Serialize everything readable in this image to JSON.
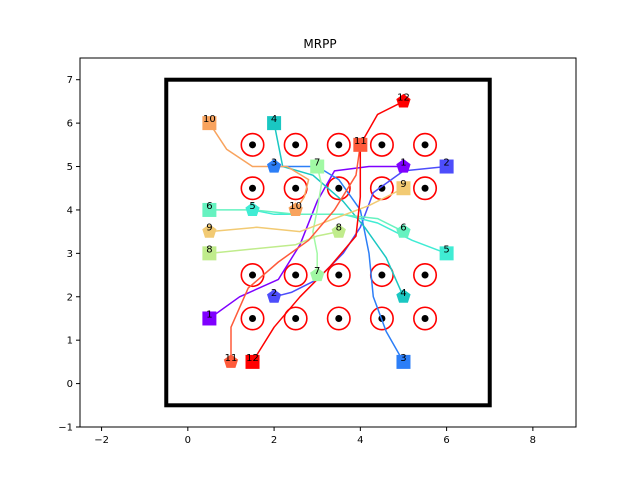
{
  "chart_data": {
    "type": "scatter",
    "title": "MRPP",
    "xlabel": "",
    "ylabel": "",
    "xlim": [
      -2.5,
      9.0
    ],
    "ylim": [
      -1.0,
      7.5
    ],
    "x_ticks": [
      -2,
      0,
      2,
      4,
      6,
      8
    ],
    "y_ticks": [
      -1,
      0,
      1,
      2,
      3,
      4,
      5,
      6,
      7
    ],
    "grid": false,
    "boundary": {
      "x": [
        -0.5,
        7.0
      ],
      "y": [
        -0.5,
        7.0
      ]
    },
    "obstacles": [
      [
        1.5,
        5.5
      ],
      [
        2.5,
        5.5
      ],
      [
        3.5,
        5.5
      ],
      [
        4.5,
        5.5
      ],
      [
        5.5,
        5.5
      ],
      [
        1.5,
        4.5
      ],
      [
        2.5,
        4.5
      ],
      [
        3.5,
        4.5
      ],
      [
        4.5,
        4.5
      ],
      [
        5.5,
        4.5
      ],
      [
        1.5,
        2.5
      ],
      [
        2.5,
        2.5
      ],
      [
        3.5,
        2.5
      ],
      [
        4.5,
        2.5
      ],
      [
        5.5,
        2.5
      ],
      [
        1.5,
        1.5
      ],
      [
        2.5,
        1.5
      ],
      [
        3.5,
        1.5
      ],
      [
        4.5,
        1.5
      ],
      [
        5.5,
        1.5
      ]
    ],
    "agents": [
      {
        "label": "1",
        "color": "#7f00ff",
        "start": [
          0.5,
          1.5
        ],
        "goal": [
          5.0,
          5.0
        ],
        "path": [
          [
            0.5,
            1.5
          ],
          [
            1.2,
            2.0
          ],
          [
            2.1,
            2.4
          ],
          [
            2.6,
            3.2
          ],
          [
            3.0,
            4.2
          ],
          [
            3.4,
            4.9
          ],
          [
            4.2,
            5.0
          ],
          [
            5.0,
            5.0
          ]
        ]
      },
      {
        "label": "2",
        "color": "#4d4dfb",
        "start": [
          6.0,
          5.0
        ],
        "goal": [
          2.0,
          2.0
        ],
        "path": [
          [
            6.0,
            5.0
          ],
          [
            5.0,
            4.9
          ],
          [
            4.3,
            4.4
          ],
          [
            4.0,
            3.6
          ],
          [
            3.6,
            3.0
          ],
          [
            3.0,
            2.4
          ],
          [
            2.4,
            2.1
          ],
          [
            2.0,
            2.0
          ]
        ]
      },
      {
        "label": "3",
        "color": "#2c7ef7",
        "start": [
          5.0,
          0.5
        ],
        "goal": [
          2.0,
          5.0
        ],
        "path": [
          [
            5.0,
            0.5
          ],
          [
            4.6,
            1.2
          ],
          [
            4.3,
            2.0
          ],
          [
            4.2,
            3.0
          ],
          [
            4.0,
            4.0
          ],
          [
            3.5,
            4.7
          ],
          [
            3.0,
            5.0
          ],
          [
            2.0,
            5.0
          ]
        ]
      },
      {
        "label": "4",
        "color": "#1ac7c2",
        "start": [
          2.0,
          6.0
        ],
        "goal": [
          5.0,
          2.0
        ],
        "path": [
          [
            2.0,
            6.0
          ],
          [
            2.1,
            5.5
          ],
          [
            2.2,
            5.0
          ],
          [
            2.9,
            4.8
          ],
          [
            3.6,
            4.2
          ],
          [
            4.1,
            3.6
          ],
          [
            4.6,
            2.9
          ],
          [
            5.0,
            2.0
          ]
        ]
      },
      {
        "label": "5",
        "color": "#40ecd4",
        "start": [
          6.0,
          3.0
        ],
        "goal": [
          1.5,
          4.0
        ],
        "path": [
          [
            6.0,
            3.0
          ],
          [
            5.2,
            3.3
          ],
          [
            4.4,
            3.7
          ],
          [
            3.6,
            3.9
          ],
          [
            2.8,
            3.9
          ],
          [
            2.0,
            3.9
          ],
          [
            1.5,
            4.0
          ]
        ]
      },
      {
        "label": "6",
        "color": "#66f2c0",
        "start": [
          0.5,
          4.0
        ],
        "goal": [
          5.0,
          3.5
        ],
        "path": [
          [
            0.5,
            4.0
          ],
          [
            1.5,
            4.0
          ],
          [
            2.5,
            3.9
          ],
          [
            3.5,
            3.9
          ],
          [
            4.4,
            3.8
          ],
          [
            5.0,
            3.5
          ]
        ]
      },
      {
        "label": "7",
        "color": "#a1f9a4",
        "start": [
          3.0,
          5.0
        ],
        "goal": [
          3.0,
          2.5
        ],
        "path": [
          [
            3.0,
            5.0
          ],
          [
            3.1,
            4.6
          ],
          [
            3.0,
            4.0
          ],
          [
            2.9,
            3.5
          ],
          [
            3.0,
            3.0
          ],
          [
            3.0,
            2.5
          ]
        ]
      },
      {
        "label": "8",
        "color": "#c0ec8c",
        "start": [
          0.5,
          3.0
        ],
        "goal": [
          3.5,
          3.5
        ],
        "path": [
          [
            0.5,
            3.0
          ],
          [
            1.5,
            3.1
          ],
          [
            2.5,
            3.2
          ],
          [
            3.0,
            3.4
          ],
          [
            3.5,
            3.5
          ]
        ]
      },
      {
        "label": "9",
        "color": "#f2ca73",
        "start": [
          5.0,
          4.5
        ],
        "goal": [
          0.5,
          3.5
        ],
        "path": [
          [
            5.0,
            4.5
          ],
          [
            4.2,
            4.1
          ],
          [
            3.4,
            3.8
          ],
          [
            2.6,
            3.5
          ],
          [
            1.6,
            3.6
          ],
          [
            0.5,
            3.5
          ]
        ]
      },
      {
        "label": "10",
        "color": "#f8a35e",
        "start": [
          0.5,
          6.0
        ],
        "goal": [
          2.5,
          4.0
        ],
        "path": [
          [
            0.5,
            6.0
          ],
          [
            0.9,
            5.4
          ],
          [
            1.5,
            5.0
          ],
          [
            2.3,
            5.0
          ],
          [
            2.8,
            4.7
          ],
          [
            2.7,
            4.3
          ],
          [
            2.5,
            4.0
          ]
        ]
      },
      {
        "label": "11",
        "color": "#ff5a3a",
        "start": [
          4.0,
          5.5
        ],
        "goal": [
          1.0,
          0.5
        ],
        "path": [
          [
            4.0,
            5.5
          ],
          [
            3.9,
            4.8
          ],
          [
            3.4,
            4.0
          ],
          [
            2.8,
            3.3
          ],
          [
            2.1,
            2.8
          ],
          [
            1.4,
            2.2
          ],
          [
            1.0,
            1.3
          ],
          [
            1.0,
            0.5
          ]
        ]
      },
      {
        "label": "12",
        "color": "#ff0000",
        "start": [
          1.5,
          0.5
        ],
        "goal": [
          5.0,
          6.5
        ],
        "path": [
          [
            1.5,
            0.5
          ],
          [
            2.0,
            1.3
          ],
          [
            2.6,
            2.0
          ],
          [
            3.3,
            2.7
          ],
          [
            3.9,
            3.4
          ],
          [
            4.0,
            4.3
          ],
          [
            4.0,
            5.5
          ],
          [
            4.4,
            6.2
          ],
          [
            5.0,
            6.5
          ]
        ]
      }
    ]
  }
}
